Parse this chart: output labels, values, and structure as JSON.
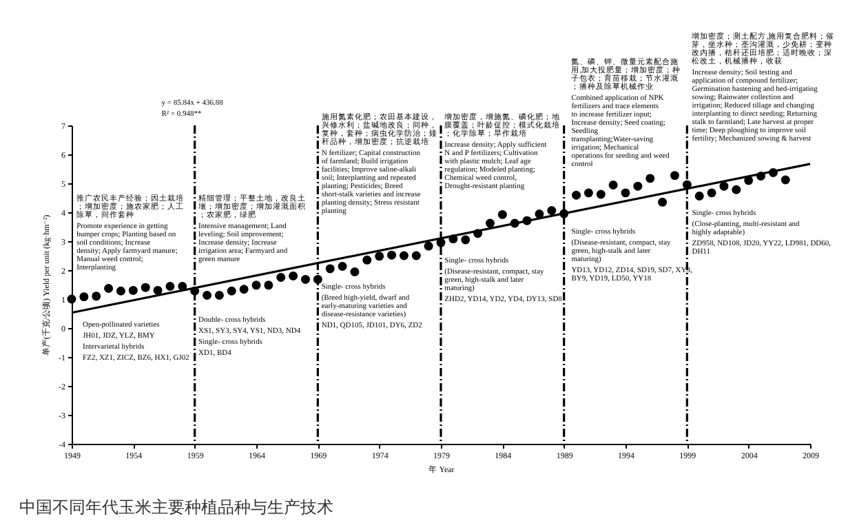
{
  "chart_data": {
    "type": "scatter",
    "title": "中国不同年代玉米主要种植品种与生产技术",
    "xlabel": "年 Year",
    "ylabel": "单产(千克/公顷) Yield per unit (kg·hm⁻²)",
    "xlim": [
      1949,
      2009
    ],
    "xticks": [
      1949,
      1954,
      1959,
      1964,
      1969,
      1974,
      1979,
      1984,
      1989,
      1994,
      1999,
      2004,
      2009
    ],
    "ylim": [
      -4,
      7
    ],
    "yticks": [
      -4,
      -3,
      -2,
      -1,
      0,
      1,
      2,
      3,
      4,
      5,
      6,
      7
    ],
    "series": [
      {
        "color": "#000000",
        "marker": "circle",
        "x": [
          1949,
          1950,
          1951,
          1952,
          1953,
          1954,
          1955,
          1956,
          1957,
          1958,
          1959,
          1960,
          1961,
          1962,
          1963,
          1964,
          1965,
          1966,
          1967,
          1968,
          1969,
          1970,
          1971,
          1972,
          1973,
          1974,
          1975,
          1976,
          1977,
          1978,
          1979,
          1980,
          1981,
          1982,
          1983,
          1984,
          1985,
          1986,
          1987,
          1988,
          1989,
          1990,
          1991,
          1992,
          1993,
          1994,
          1995,
          1996,
          1997,
          1998,
          1999,
          2000,
          2001,
          2002,
          2003,
          2004,
          2005,
          2006,
          2007
        ],
        "values": [
          1.0,
          1.08,
          1.1,
          1.37,
          1.28,
          1.3,
          1.4,
          1.3,
          1.44,
          1.44,
          1.28,
          1.13,
          1.13,
          1.28,
          1.34,
          1.48,
          1.48,
          1.75,
          1.8,
          1.68,
          1.68,
          2.05,
          2.13,
          1.94,
          2.35,
          2.48,
          2.52,
          2.5,
          2.5,
          2.83,
          2.95,
          3.08,
          3.05,
          3.27,
          3.62,
          3.92,
          3.62,
          3.71,
          3.94,
          4.06,
          3.95,
          4.59,
          4.67,
          4.62,
          4.94,
          4.67,
          4.9,
          5.17,
          4.35,
          5.27,
          4.95,
          4.56,
          4.67,
          4.9,
          4.78,
          5.1,
          5.25,
          5.37,
          5.12
        ]
      },
      {
        "type": "line",
        "color": "#000000",
        "x": [
          1949,
          2009
        ],
        "values": [
          0.53,
          5.67
        ]
      }
    ],
    "ref_lines": [
      {
        "axis": "x",
        "value": 1959,
        "line_style": "dashed"
      },
      {
        "axis": "x",
        "value": 1969,
        "line_style": "dashed"
      },
      {
        "axis": "x",
        "value": 1979,
        "line_style": "dashed"
      },
      {
        "axis": "x",
        "value": 1989,
        "line_style": "dashed"
      },
      {
        "axis": "x",
        "value": 1999,
        "line_style": "dashed"
      }
    ],
    "annotations": [
      "y = 85.84x + 436.88",
      "R² = 0.948**",
      "推广农民丰产经验；因土栽培；增加密度；施农家肥；人工除草，间作套种",
      "Promote experience in getting bumper crops; Planting based on soil conditions; Increase density; Apply farmyard manure; Manual weed control; Interplanting",
      "Open-pollinated varieties",
      "JH01, JDZ, YLZ, BMY",
      "Intervarietal hybrids",
      "FZ2, XZ1, ZICZ, BZ6, HX1, GJ02",
      "精细管理；平整土地，改良土壤；增加密度；增加灌溉面积；农家肥，绿肥",
      "Intensive management; Land leveling; Soil improvement; Increase density; Increase irrigation area; Farmyard and green manure",
      "Double- cross hybrids",
      "XS1, SY3, SY4, YS1, ND3, ND4",
      "Single- cross hybrids",
      "XD1, BD4",
      "施用氮素化肥；农田基本建设，兴修水利；盐碱地改良；间种，复种，套种；病虫化学防治；矮秆品种，增加密度；抗逆栽培",
      "N fertilizer; Capital construction of farmland; Build irrigation facilities; Improve saline-alkali soil; Interplanting and repeated planting; Pesticides; Breed short-stalk varieties and increase planting density; Stress resistant planting",
      "Single- cross hybrids",
      "(Breed high-yield, dwarf and early-maturing varieties and disease-resistance varieties)",
      "ND1, QD105, JD101, DY6, ZD2",
      "增加密度，增施氮、磷化肥；地膜覆盖；叶龄促控；模式化栽培；化学除草；旱作栽培",
      "Increase density; Apply sufficient N and P fertilizers; Cultivation with plastic mulch; Leaf age regulation; Modeled planting; Chemical weed control, Drought-resistant planting",
      "Single- cross hybrids",
      "(Disease-resistant, compact, stay green, high-stalk and later maturing)",
      "ZHD2, YD14, YD2, YD4, DY13, SD8",
      "氮、磷、钾、微量元素配合施用,加大投肥量；增加密度；种子包衣；育苗移栽；节水灌溉；播种及除草机械作业",
      "Combined application of NPK fertilizers and trace elements to increase fertilizer input; Increase density; Seed coating; Seedling transplanting;Water-saving irrigation; Mechanical operations for seeding and weed control",
      "Single- cross hybrids",
      "(Disease-resistant, compact, stay green, high-stalk and later maturing)",
      "YD13, YD12, ZD14, SD19, SD7, XY3, BY9, YD19, LD50, YY18",
      "增加密度；测土配方,施用复合肥料；催芽，坐水种；垄沟灌溉，少免耕；变种改内播，秸秆还田培肥；适时晚收；深松改土，机械播种，收获",
      "Increase density; Soil testing and application of compound fertilizer; Germination hastening and bed-irrigating sowing; Rainwater collection and irrigation; Reduced tillage and changing interplanting to direct seeding; Returning stalk to farmland; Late harvest at proper time; Deep ploughing to improve soil fertility; Mechanized sowing & harvest",
      "Single- cross hybrids",
      "(Close-planting, multi-resistant and highly adaptable)",
      "ZD958, ND108, JD20, YY22, LD981, DD60, DH11"
    ]
  }
}
